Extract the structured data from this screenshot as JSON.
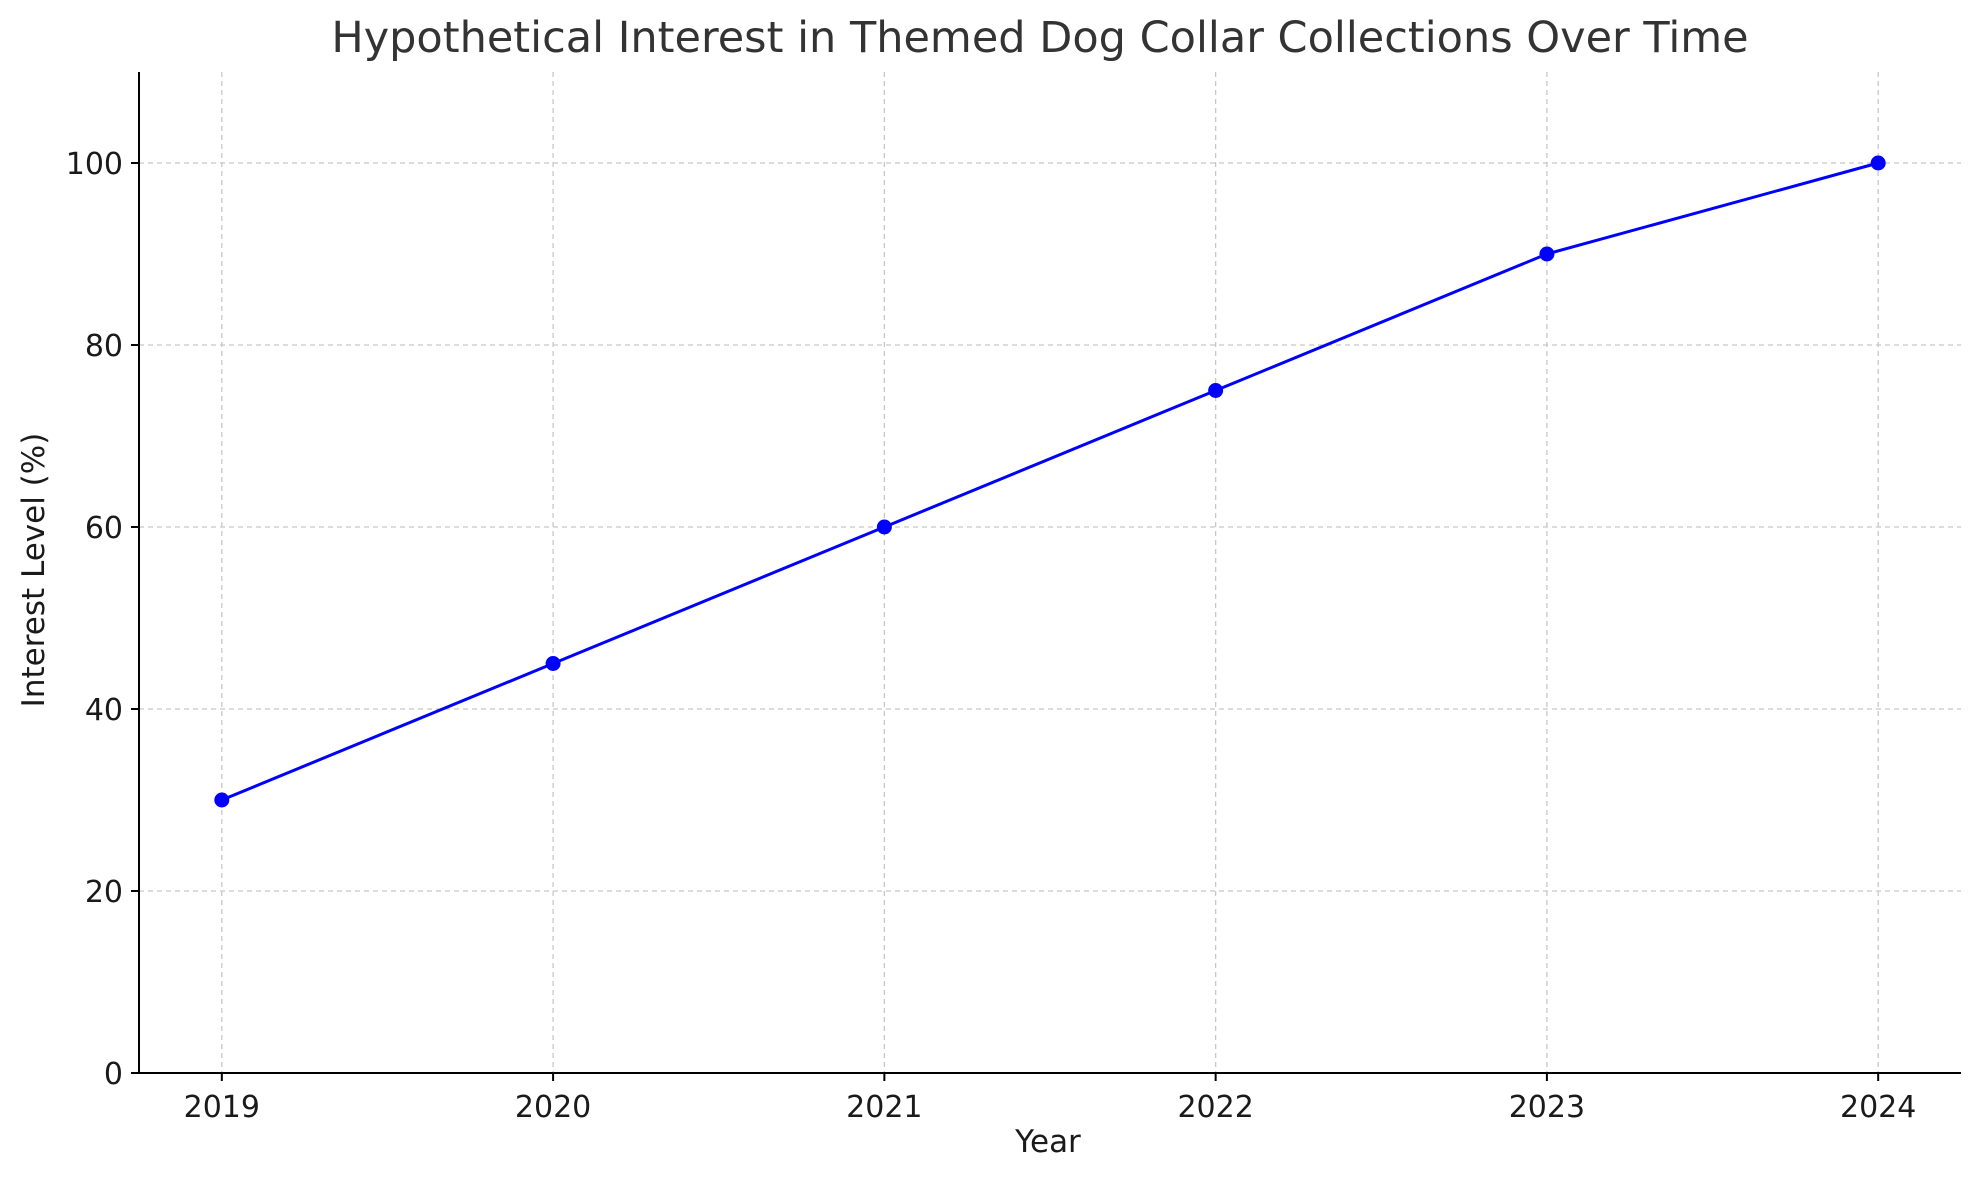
{
  "chart_data": {
    "type": "line",
    "title": "Hypothetical Interest in Themed Dog Collar Collections Over Time",
    "xlabel": "Year",
    "ylabel": "Interest Level (%)",
    "x": [
      2019,
      2020,
      2021,
      2022,
      2023,
      2024
    ],
    "x_tick_labels": [
      "2019",
      "2020",
      "2021",
      "2022",
      "2023",
      "2024"
    ],
    "series": [
      {
        "values": [
          30,
          45,
          60,
          75,
          90,
          100
        ],
        "color": "#0000ff",
        "marker": "circle"
      }
    ],
    "xlim": [
      2018.75,
      2024.25
    ],
    "ylim": [
      0,
      110
    ],
    "y_ticks": [
      0,
      20,
      40,
      60,
      80,
      100
    ],
    "y_tick_labels": [
      "0",
      "20",
      "40",
      "60",
      "80",
      "100"
    ],
    "grid": true,
    "grid_style": "dashed",
    "legend": false
  }
}
